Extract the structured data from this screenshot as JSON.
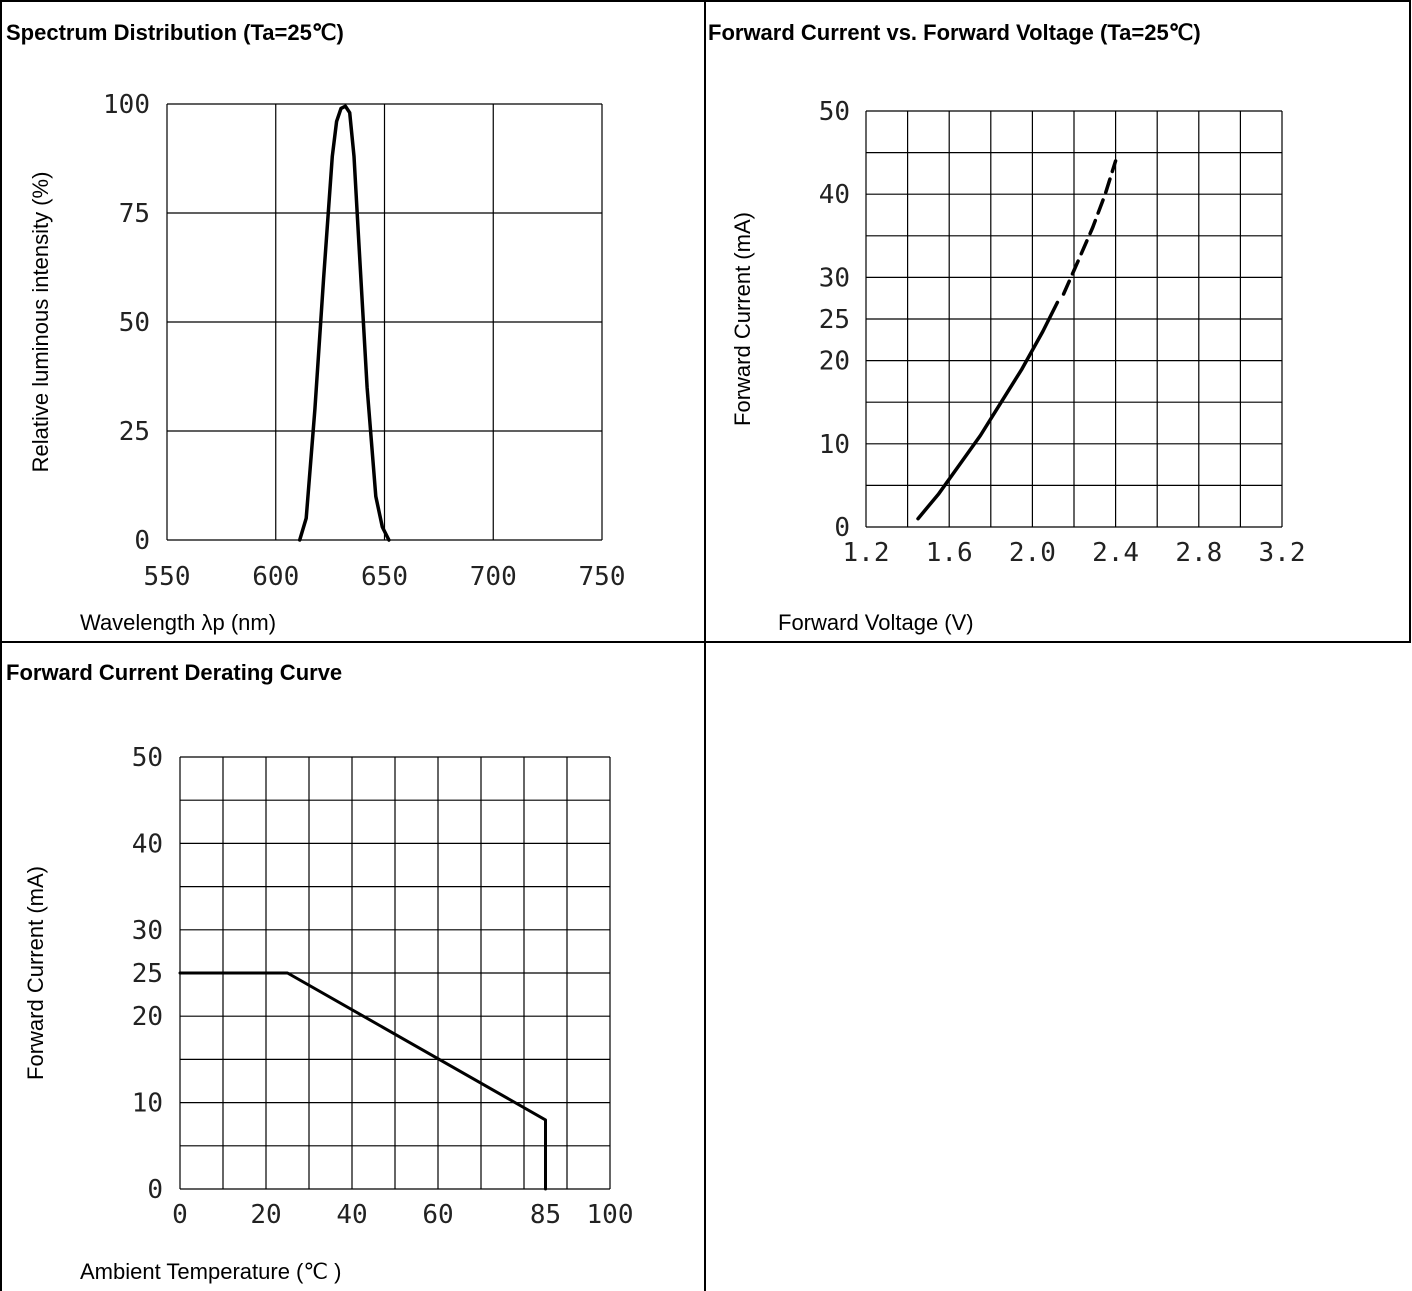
{
  "colors": {
    "grid": "#000000",
    "curve": "#000000",
    "background": "#ffffff"
  },
  "chart_data": [
    {
      "type": "line",
      "title": "Spectrum Distribution (Ta=25℃)",
      "xlabel": "Wavelength λp (nm)",
      "ylabel": "Relative luminous intensity (%)",
      "xlim": [
        550,
        750
      ],
      "ylim": [
        0,
        100
      ],
      "x_ticks": [
        "550",
        "600",
        "650",
        "700",
        "750"
      ],
      "y_ticks": [
        "0",
        "25",
        "50",
        "75",
        "100"
      ],
      "grid": true,
      "series": [
        {
          "x": [
            611,
            614,
            618,
            622,
            626,
            628,
            630,
            632,
            634,
            636,
            638,
            642,
            646,
            649,
            652
          ],
          "y": [
            0,
            5,
            30,
            60,
            88,
            96,
            99,
            99.5,
            98,
            88,
            70,
            35,
            10,
            3,
            0
          ]
        }
      ]
    },
    {
      "type": "line",
      "title": "Forward Current vs. Forward Voltage (Ta=25℃)",
      "xlabel": "Forward Voltage (V)",
      "ylabel": "Forward Current (mA)",
      "xlim": [
        1.2,
        3.2
      ],
      "ylim": [
        0,
        50
      ],
      "x_ticks": [
        "1.2",
        "1.6",
        "2.0",
        "2.4",
        "2.8",
        "3.2"
      ],
      "y_ticks": [
        "0",
        "10",
        "20",
        "25",
        "30",
        "40",
        "50"
      ],
      "grid": true,
      "series": [
        {
          "style": "solid",
          "x": [
            1.45,
            1.55,
            1.65,
            1.75,
            1.85,
            1.95,
            2.05,
            2.12
          ],
          "y": [
            1,
            4,
            7.5,
            11,
            15,
            19,
            23.5,
            27
          ]
        },
        {
          "style": "dashed",
          "x": [
            2.15,
            2.22,
            2.29,
            2.35,
            2.4
          ],
          "y": [
            28,
            32,
            36,
            40,
            44
          ]
        }
      ]
    },
    {
      "type": "line",
      "title": "Forward Current Derating Curve",
      "xlabel": "Ambient Temperature (℃ )",
      "ylabel": "Forward Current (mA)",
      "xlim": [
        0,
        100
      ],
      "ylim": [
        0,
        50
      ],
      "x_ticks": [
        "0",
        "20",
        "40",
        "60",
        "85",
        "100"
      ],
      "y_ticks": [
        "0",
        "10",
        "20",
        "25",
        "30",
        "40",
        "50"
      ],
      "grid": true,
      "series": [
        {
          "x": [
            0,
            25,
            85,
            85
          ],
          "y": [
            25,
            25,
            8,
            0
          ]
        }
      ]
    }
  ]
}
